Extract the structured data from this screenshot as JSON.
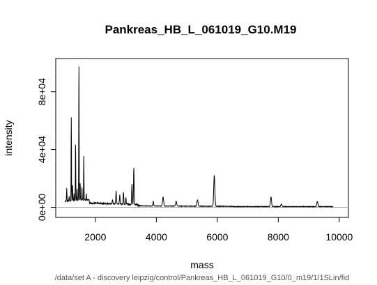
{
  "chart_data": {
    "type": "line",
    "title": "Pankreas_HB_L_061019_G10.M19",
    "xlabel": "mass",
    "ylabel": "intensity",
    "subtitle": "/data/set A - discovery leipzig/control/Pankreas_HB_L_061019_G10/0_m19/1/1SLin/fid",
    "xlim": [
      700,
      10300
    ],
    "ylim": [
      -7000,
      103000
    ],
    "x_ticks": [
      2000,
      4000,
      6000,
      8000,
      10000
    ],
    "x_tick_labels": [
      "2000",
      "4000",
      "6000",
      "8000",
      "10000"
    ],
    "y_ticks": [
      0,
      40000,
      80000
    ],
    "y_tick_labels": [
      "0e+00",
      "4e+04",
      "8e+04"
    ],
    "data_range_x": [
      1000,
      9800
    ],
    "baseline": 0,
    "series_color": "#000000",
    "baseline_color": "#aaaaaa",
    "peaks": [
      {
        "x": 1060,
        "y": 13000
      },
      {
        "x": 1140,
        "y": 7000
      },
      {
        "x": 1210,
        "y": 62000
      },
      {
        "x": 1250,
        "y": 16000
      },
      {
        "x": 1300,
        "y": 9000
      },
      {
        "x": 1350,
        "y": 45000
      },
      {
        "x": 1400,
        "y": 13000
      },
      {
        "x": 1460,
        "y": 102000
      },
      {
        "x": 1500,
        "y": 17000
      },
      {
        "x": 1560,
        "y": 14000
      },
      {
        "x": 1620,
        "y": 37000
      },
      {
        "x": 1700,
        "y": 9000
      },
      {
        "x": 2560,
        "y": 5000
      },
      {
        "x": 2680,
        "y": 11000
      },
      {
        "x": 2800,
        "y": 8000
      },
      {
        "x": 2920,
        "y": 10000
      },
      {
        "x": 3000,
        "y": 6000
      },
      {
        "x": 3200,
        "y": 16000
      },
      {
        "x": 3260,
        "y": 27000
      },
      {
        "x": 3900,
        "y": 4000
      },
      {
        "x": 4220,
        "y": 7000
      },
      {
        "x": 4650,
        "y": 4000
      },
      {
        "x": 5350,
        "y": 5000
      },
      {
        "x": 5900,
        "y": 22000
      },
      {
        "x": 7760,
        "y": 7000
      },
      {
        "x": 8100,
        "y": 2000
      },
      {
        "x": 9280,
        "y": 4000
      }
    ]
  }
}
